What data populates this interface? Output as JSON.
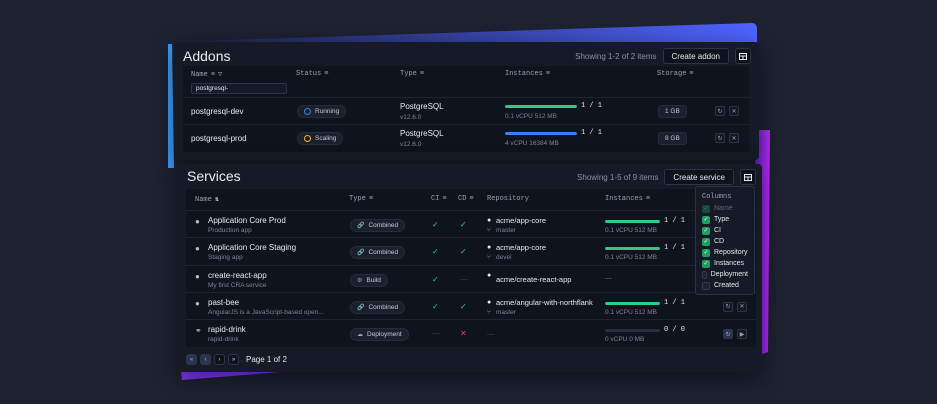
{
  "addons": {
    "title": "Addons",
    "showing": "Showing 1-2 of 2 items",
    "create_label": "Create addon",
    "columns": [
      "Name",
      "Status",
      "Type",
      "Instances",
      "Storage"
    ],
    "filter_value": "postgresql-",
    "rows": [
      {
        "name": "postgresql-dev",
        "status": "Running",
        "status_color": "#3b7ff5",
        "type": "PostgreSQL",
        "version": "v12.6.0",
        "count": "1 / 1",
        "fill": 1.0,
        "fill_color": "#2ecb86",
        "res": "0.1 vCPU  512 MB",
        "storage": "1 GB"
      },
      {
        "name": "postgresql-prod",
        "status": "Scaling",
        "status_color": "#f0b429",
        "type": "PostgreSQL",
        "version": "v12.6.0",
        "count": "1 / 1",
        "fill": 1.0,
        "fill_color": "#3b7ff5",
        "res": "4 vCPU  16384 MB",
        "storage": "8 GB"
      }
    ]
  },
  "services": {
    "title": "Services",
    "showing": "Showing 1-5 of 9 items",
    "create_label": "Create service",
    "columns": [
      "Name",
      "Type",
      "CI",
      "CD",
      "Repository",
      "Instances"
    ],
    "rows": [
      {
        "name": "Application Core Prod",
        "desc": "Production app",
        "type": "Combined",
        "ci": "check",
        "cd": "check",
        "repo": "acme/app-core",
        "branch": "master",
        "count": "1 / 1",
        "fill": 1.0,
        "res": "0.1 vCPU 512 MB"
      },
      {
        "name": "Application Core Staging",
        "desc": "Staging app",
        "type": "Combined",
        "ci": "check",
        "cd": "check",
        "repo": "acme/app-core",
        "branch": "devel",
        "count": "1 / 1",
        "fill": 1.0,
        "res": "0.1 vCPU 512 MB"
      },
      {
        "name": "create-react-app",
        "desc": "My first CRA service",
        "type": "Build",
        "ci": "check",
        "cd": "dash",
        "repo": "acme/create-react-app",
        "branch": "",
        "count": "",
        "fill": 0,
        "res": "—"
      },
      {
        "name": "past-bee",
        "desc": "AngularJS is a JavaScript-based open...",
        "type": "Combined",
        "ci": "check",
        "cd": "check",
        "repo": "acme/angular-with-northflank",
        "branch": "master",
        "count": "1 / 1",
        "fill": 1.0,
        "res": "0.1 vCPU 512 MB"
      },
      {
        "name": "rapid-drink",
        "desc": "rapid-drink",
        "type": "Deployment",
        "ci": "dash",
        "cd": "cross",
        "repo": "—",
        "branch": "",
        "count": "0 / 0",
        "fill": 0,
        "res": "0 vCPU 0 MB"
      }
    ],
    "page_label": "Page 1 of 2"
  },
  "columns_menu": {
    "title": "Columns",
    "items": [
      {
        "label": "Name",
        "checked": true,
        "disabled": true
      },
      {
        "label": "Type",
        "checked": true
      },
      {
        "label": "CI",
        "checked": true
      },
      {
        "label": "CD",
        "checked": true
      },
      {
        "label": "Repository",
        "checked": true
      },
      {
        "label": "Instances",
        "checked": true
      },
      {
        "label": "Deployment",
        "checked": false
      },
      {
        "label": "Created",
        "checked": false
      }
    ]
  },
  "colors": {
    "accent_blue": "#3b7ff5",
    "accent_purple": "#a322f0",
    "green": "#2ecb86",
    "red": "#e04444",
    "amber": "#f0b429"
  }
}
